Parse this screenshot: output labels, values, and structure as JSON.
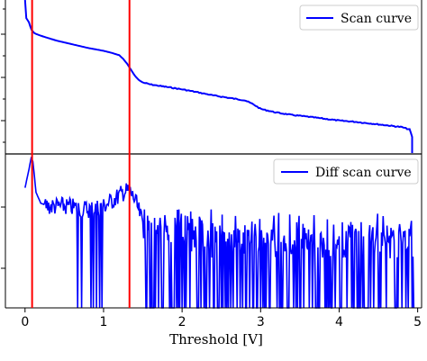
{
  "chart_data": [
    {
      "type": "line",
      "panel": "top",
      "yscale": "log",
      "xlim": [
        -0.25,
        5.05
      ],
      "series": [
        {
          "name": "Scan curve",
          "color": "#0000ff",
          "x": [
            0.0,
            0.05,
            0.08,
            0.12,
            0.2,
            0.4,
            0.6,
            0.8,
            1.0,
            1.1,
            1.2,
            1.25,
            1.3,
            1.35,
            1.4,
            1.45,
            1.5,
            1.6,
            1.8,
            2.0,
            2.2,
            2.4,
            2.6,
            2.8,
            2.9,
            3.0,
            3.2,
            3.4,
            3.6,
            3.8,
            4.0,
            4.2,
            4.4,
            4.6,
            4.8,
            4.9,
            4.93
          ],
          "y": [
            0.0,
            0.25,
            0.55,
            0.7,
            0.8,
            1.0,
            1.15,
            1.3,
            1.42,
            1.5,
            1.6,
            1.75,
            1.95,
            2.2,
            2.45,
            2.62,
            2.72,
            2.8,
            2.9,
            3.0,
            3.12,
            3.25,
            3.35,
            3.45,
            3.6,
            3.8,
            3.95,
            4.05,
            4.12,
            4.2,
            4.28,
            4.33,
            4.4,
            4.47,
            4.55,
            4.65,
            4.95
          ]
        }
      ],
      "vlines": [
        0.09,
        1.33
      ],
      "vline_color": "#ff0000",
      "legend_position": "top-right"
    },
    {
      "type": "line",
      "panel": "bottom",
      "xlim": [
        -0.25,
        5.05
      ],
      "xlabel": "Threshold [V]",
      "xticks": [
        0,
        1,
        2,
        3,
        4,
        5
      ],
      "xtick_labels": [
        "0",
        "1",
        "2",
        "3",
        "4",
        "5"
      ],
      "series": [
        {
          "name": "Diff scan curve",
          "color": "#0000ff",
          "profile_x": [
            0.0,
            0.05,
            0.08,
            0.1,
            0.14,
            0.2,
            0.3,
            0.5,
            0.8,
            1.0,
            1.15,
            1.25,
            1.33,
            1.4,
            1.5,
            1.6,
            2.0,
            3.0,
            4.0,
            4.95
          ],
          "profile_y": [
            0.22,
            0.1,
            0.02,
            0.05,
            0.25,
            0.32,
            0.34,
            0.34,
            0.36,
            0.34,
            0.29,
            0.25,
            0.24,
            0.3,
            0.45,
            0.5,
            0.5,
            0.53,
            0.55,
            0.55
          ],
          "noise_start_x": 0.25,
          "noise_amplitude": 0.06,
          "drop_x": [
            0.67,
            0.72,
            0.84,
            0.87,
            0.91,
            0.95,
            0.98,
            1.55,
            1.6,
            1.66,
            1.7,
            1.84,
            1.9,
            2.05,
            2.1,
            2.2,
            2.35,
            2.45,
            2.55,
            2.62,
            2.7,
            2.82,
            2.9,
            3.05,
            3.12,
            3.25,
            3.35,
            3.45,
            3.55,
            3.62,
            3.72,
            3.82,
            3.9,
            4.02,
            4.1,
            4.18,
            4.3,
            4.4,
            4.5,
            4.6,
            4.72,
            4.8,
            4.88,
            4.93
          ]
        }
      ],
      "vlines": [
        0.09,
        1.33
      ],
      "vline_color": "#ff0000",
      "legend_position": "top-right"
    }
  ]
}
